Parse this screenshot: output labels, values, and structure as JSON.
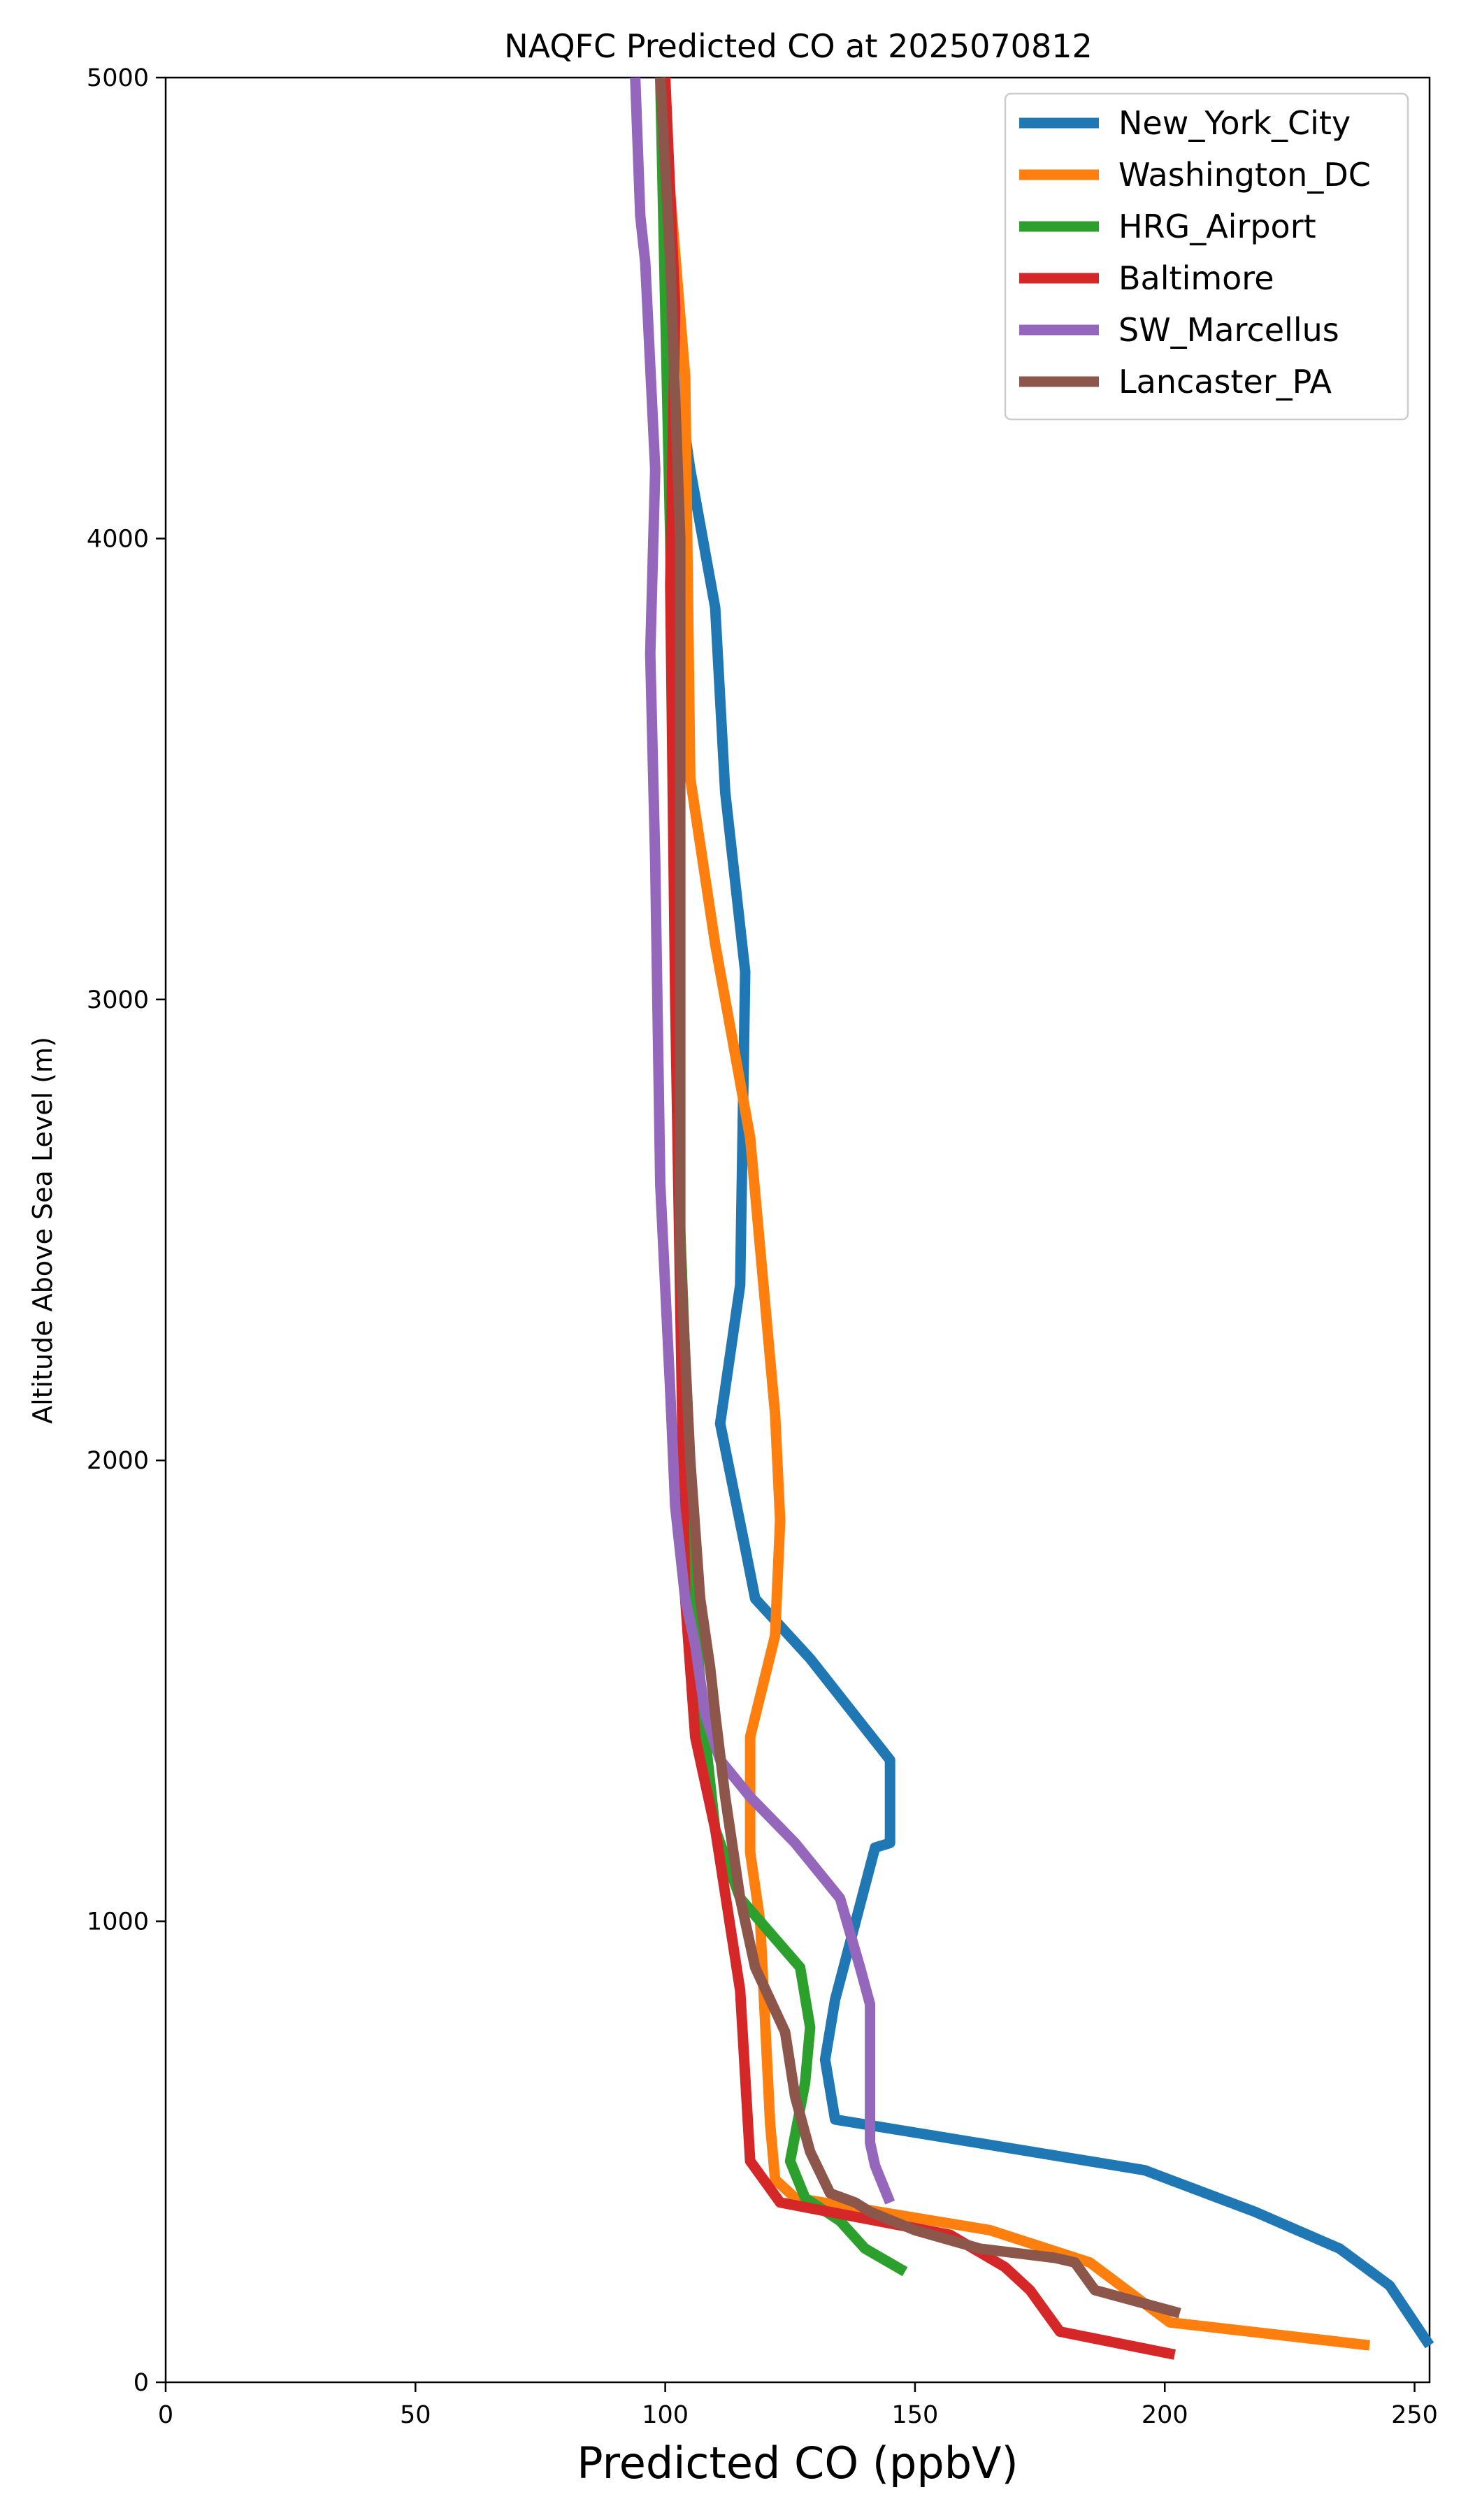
{
  "chart_data": {
    "type": "line",
    "title": "NAQFC Predicted CO at 2025070812",
    "xlabel": "Predicted CO (ppbV)",
    "ylabel": "Altitude Above Sea Level (m)",
    "xlim": [
      0,
      253
    ],
    "ylim": [
      0,
      5000
    ],
    "xticks": [
      0,
      50,
      100,
      150,
      200,
      250
    ],
    "yticks": [
      0,
      1000,
      2000,
      3000,
      4000,
      5000
    ],
    "grid": false,
    "legend_position": "top-right",
    "series": [
      {
        "name": "New_York_City",
        "color": "#1f77b4",
        "points": [
          [
            253,
            80
          ],
          [
            245,
            210
          ],
          [
            235,
            290
          ],
          [
            218,
            370
          ],
          [
            196,
            460
          ],
          [
            134,
            570
          ],
          [
            132,
            700
          ],
          [
            134,
            830
          ],
          [
            142,
            1160
          ],
          [
            145,
            1170
          ],
          [
            145,
            1350
          ],
          [
            129,
            1570
          ],
          [
            118,
            1700
          ],
          [
            116,
            1810
          ],
          [
            111,
            2080
          ],
          [
            115,
            2380
          ],
          [
            116,
            3060
          ],
          [
            112,
            3450
          ],
          [
            110,
            3850
          ],
          [
            105,
            4150
          ],
          [
            103,
            4300
          ]
        ]
      },
      {
        "name": "Washington_DC",
        "color": "#ff7f0e",
        "points": [
          [
            241,
            80
          ],
          [
            201,
            130
          ],
          [
            185,
            260
          ],
          [
            165,
            330
          ],
          [
            126,
            400
          ],
          [
            122,
            440
          ],
          [
            121,
            560
          ],
          [
            119,
            1000
          ],
          [
            117,
            1150
          ],
          [
            117,
            1400
          ],
          [
            122,
            1620
          ],
          [
            123,
            1870
          ],
          [
            122,
            2100
          ],
          [
            117,
            2700
          ],
          [
            110,
            3120
          ],
          [
            105,
            3480
          ],
          [
            104,
            4350
          ],
          [
            101,
            4750
          ],
          [
            99,
            5000
          ]
        ]
      },
      {
        "name": "HRG_Airport",
        "color": "#2ca02c",
        "points": [
          [
            148,
            240
          ],
          [
            140,
            290
          ],
          [
            135,
            350
          ],
          [
            128,
            400
          ],
          [
            125,
            480
          ],
          [
            128,
            650
          ],
          [
            129,
            770
          ],
          [
            127,
            900
          ],
          [
            115,
            1050
          ],
          [
            110,
            1200
          ],
          [
            108,
            1400
          ],
          [
            106,
            1650
          ],
          [
            103,
            2500
          ],
          [
            101,
            4000
          ],
          [
            99,
            5000
          ]
        ]
      },
      {
        "name": "Baltimore",
        "color": "#d62728",
        "points": [
          [
            202,
            60
          ],
          [
            179,
            110
          ],
          [
            173,
            200
          ],
          [
            168,
            250
          ],
          [
            157,
            320
          ],
          [
            123,
            390
          ],
          [
            117,
            480
          ],
          [
            115,
            850
          ],
          [
            110,
            1200
          ],
          [
            106,
            1400
          ],
          [
            104,
            1700
          ],
          [
            102,
            3000
          ],
          [
            101,
            3900
          ],
          [
            102,
            4500
          ],
          [
            100,
            5000
          ]
        ]
      },
      {
        "name": "SW_Marcellus",
        "color": "#9467bd",
        "points": [
          [
            145,
            390
          ],
          [
            142,
            470
          ],
          [
            141,
            520
          ],
          [
            141,
            820
          ],
          [
            139,
            900
          ],
          [
            135,
            1050
          ],
          [
            126,
            1170
          ],
          [
            117,
            1270
          ],
          [
            111,
            1350
          ],
          [
            108,
            1450
          ],
          [
            106,
            1600
          ],
          [
            104,
            1700
          ],
          [
            102,
            1900
          ],
          [
            101,
            2150
          ],
          [
            99,
            2600
          ],
          [
            98,
            3300
          ],
          [
            97,
            3750
          ],
          [
            98,
            4150
          ],
          [
            96,
            4600
          ],
          [
            95,
            4700
          ],
          [
            94,
            5000
          ]
        ]
      },
      {
        "name": "Lancaster_PA",
        "color": "#8c564b",
        "points": [
          [
            203,
            150
          ],
          [
            186,
            200
          ],
          [
            182,
            260
          ],
          [
            178,
            270
          ],
          [
            163,
            290
          ],
          [
            150,
            330
          ],
          [
            141,
            370
          ],
          [
            138,
            390
          ],
          [
            133,
            410
          ],
          [
            129,
            500
          ],
          [
            126,
            620
          ],
          [
            124,
            760
          ],
          [
            118,
            900
          ],
          [
            115,
            1050
          ],
          [
            112,
            1270
          ],
          [
            110,
            1450
          ],
          [
            109,
            1550
          ],
          [
            107,
            1700
          ],
          [
            105,
            2000
          ],
          [
            103,
            2450
          ],
          [
            103,
            2900
          ],
          [
            103,
            3500
          ],
          [
            103,
            4000
          ],
          [
            101,
            4600
          ],
          [
            99,
            5000
          ]
        ]
      }
    ]
  }
}
